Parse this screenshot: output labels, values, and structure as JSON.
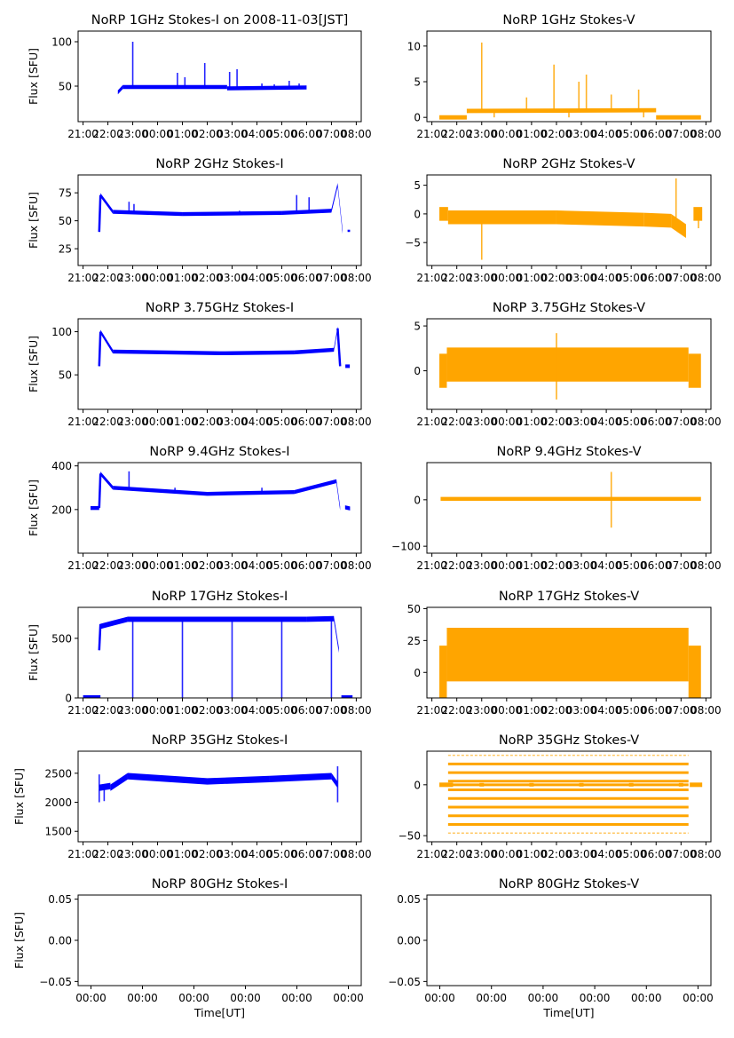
{
  "chart_data": [
    {
      "id": "p1i",
      "type": "scatter",
      "title": "NoRP 1GHz Stokes-I on 2008-11-03[JST]",
      "ylabel": "Flux [SFU]",
      "xlabel": "",
      "color": "#0000ff",
      "ylim": [
        10,
        112
      ],
      "yticks": [
        50,
        100
      ],
      "ytick_labels": [
        "50",
        "100"
      ],
      "xlim": [
        20.8,
        32.2
      ],
      "xticks": [
        21,
        22,
        23,
        24,
        25,
        26,
        27,
        28,
        29,
        30,
        31,
        32
      ],
      "xtick_labels": [
        "21:00",
        "22:00",
        "23:00",
        "00:00",
        "01:00",
        "02:00",
        "03:00",
        "04:00",
        "05:00",
        "06:00",
        "07:00",
        "08:00"
      ],
      "segments": [
        [
          22.4,
          43,
          22.6,
          49
        ],
        [
          22.6,
          49,
          26.8,
          49
        ],
        [
          26.8,
          47.5,
          30,
          48.5
        ]
      ],
      "band": 0.5,
      "spikes": [
        [
          23.0,
          100
        ],
        [
          24.8,
          65
        ],
        [
          25.1,
          60
        ],
        [
          25.9,
          76
        ],
        [
          26.9,
          66
        ],
        [
          27.2,
          69
        ],
        [
          28.2,
          53
        ],
        [
          28.7,
          52
        ],
        [
          29.3,
          56
        ],
        [
          29.7,
          53
        ]
      ]
    },
    {
      "id": "p1v",
      "type": "scatter",
      "title": "NoRP 1GHz Stokes-V",
      "ylabel": "",
      "xlabel": "",
      "color": "#ffa500",
      "ylim": [
        -0.6,
        12.1
      ],
      "yticks": [
        0,
        5,
        10
      ],
      "ytick_labels": [
        "0",
        "5",
        "10"
      ],
      "xlim": [
        20.8,
        32.2
      ],
      "xticks": [
        21,
        22,
        23,
        24,
        25,
        26,
        27,
        28,
        29,
        30,
        31,
        32
      ],
      "xtick_labels": [
        "21:00",
        "22:00",
        "23:00",
        "00:00",
        "01:00",
        "02:00",
        "03:00",
        "04:00",
        "05:00",
        "06:00",
        "07:00",
        "08:00"
      ],
      "segments": [
        [
          21.3,
          0,
          22.4,
          0
        ],
        [
          22.4,
          0.9,
          30,
          1.0
        ],
        [
          30,
          0,
          31.8,
          0
        ]
      ],
      "band": 0.3,
      "spikes": [
        [
          23.0,
          10.5
        ],
        [
          24.8,
          2.8
        ],
        [
          25.9,
          7.4
        ],
        [
          26.9,
          5
        ],
        [
          27.2,
          6
        ],
        [
          28.2,
          3.2
        ],
        [
          29.3,
          3.9
        ],
        [
          23.5,
          0
        ],
        [
          26.5,
          0
        ],
        [
          29.5,
          0
        ]
      ]
    },
    {
      "id": "p2i",
      "type": "scatter",
      "title": "NoRP 2GHz Stokes-I",
      "ylabel": "Flux [SFU]",
      "xlabel": "",
      "color": "#0000ff",
      "ylim": [
        10,
        91
      ],
      "yticks": [
        25,
        50,
        75
      ],
      "ytick_labels": [
        "25",
        "50",
        "75"
      ],
      "xlim": [
        20.8,
        32.2
      ],
      "xticks": [
        21,
        22,
        23,
        24,
        25,
        26,
        27,
        28,
        29,
        30,
        31,
        32
      ],
      "xtick_labels": [
        "21:00",
        "22:00",
        "23:00",
        "00:00",
        "01:00",
        "02:00",
        "03:00",
        "04:00",
        "05:00",
        "06:00",
        "07:00",
        "08:00"
      ],
      "segments": [
        [
          21.65,
          40,
          21.7,
          73
        ],
        [
          21.7,
          73,
          22.2,
          58
        ],
        [
          22.2,
          58,
          25,
          56
        ],
        [
          25,
          56,
          29,
          57
        ],
        [
          29,
          57,
          31,
          59
        ],
        [
          31,
          59,
          31.25,
          82
        ],
        [
          31.25,
          82,
          31.45,
          40
        ],
        [
          31.65,
          41,
          31.75,
          41
        ]
      ],
      "band": 1.2,
      "spikes": [
        [
          22.85,
          67
        ],
        [
          23.05,
          65
        ],
        [
          27.3,
          59
        ],
        [
          29.6,
          73
        ],
        [
          30.1,
          71
        ]
      ]
    },
    {
      "id": "p2v",
      "type": "scatter",
      "title": "NoRP 2GHz Stokes-V",
      "ylabel": "",
      "xlabel": "",
      "color": "#ffa500",
      "ylim": [
        -9,
        6.8
      ],
      "yticks": [
        -5,
        0,
        5
      ],
      "ytick_labels": [
        "−5",
        "0",
        "5"
      ],
      "xlim": [
        20.8,
        32.2
      ],
      "xticks": [
        21,
        22,
        23,
        24,
        25,
        26,
        27,
        28,
        29,
        30,
        31,
        32
      ],
      "xtick_labels": [
        "21:00",
        "22:00",
        "23:00",
        "00:00",
        "01:00",
        "02:00",
        "03:00",
        "04:00",
        "05:00",
        "06:00",
        "07:00",
        "08:00"
      ],
      "segments": [
        [
          21.3,
          0,
          21.65,
          0
        ],
        [
          21.65,
          -0.6,
          26,
          -0.6
        ],
        [
          26,
          -0.6,
          29.5,
          -1
        ],
        [
          29.5,
          -1,
          30.6,
          -1.2
        ],
        [
          30.6,
          -1.2,
          31.2,
          -3
        ],
        [
          31.5,
          0,
          31.85,
          0
        ]
      ],
      "band": 1.2,
      "spikes": [
        [
          23.0,
          -8
        ],
        [
          31.7,
          -2.5
        ],
        [
          30.8,
          6.2
        ]
      ]
    },
    {
      "id": "p3i",
      "type": "scatter",
      "title": "NoRP 3.75GHz Stokes-I",
      "ylabel": "Flux [SFU]",
      "xlabel": "",
      "color": "#0000ff",
      "ylim": [
        10,
        115
      ],
      "yticks": [
        50,
        100
      ],
      "ytick_labels": [
        "50",
        "100"
      ],
      "xlim": [
        20.8,
        32.2
      ],
      "xticks": [
        21,
        22,
        23,
        24,
        25,
        26,
        27,
        28,
        29,
        30,
        31,
        32
      ],
      "xtick_labels": [
        "21:00",
        "22:00",
        "23:00",
        "00:00",
        "01:00",
        "02:00",
        "03:00",
        "04:00",
        "05:00",
        "06:00",
        "07:00",
        "08:00"
      ],
      "segments": [
        [
          21.65,
          60,
          21.7,
          100
        ],
        [
          21.7,
          100,
          22.2,
          77
        ],
        [
          22.2,
          77,
          26.5,
          75
        ],
        [
          26.5,
          75,
          29.5,
          76
        ],
        [
          29.5,
          76,
          31.1,
          79
        ],
        [
          31.1,
          79,
          31.25,
          104
        ],
        [
          31.25,
          104,
          31.35,
          60
        ]
      ],
      "band": 1.5,
      "spikes": [
        [
          31.65,
          60
        ]
      ]
    },
    {
      "id": "p3v",
      "type": "scatter",
      "title": "NoRP 3.75GHz Stokes-V",
      "ylabel": "",
      "xlabel": "",
      "color": "#ffa500",
      "ylim": [
        -4.3,
        5.8
      ],
      "yticks": [
        0,
        5
      ],
      "ytick_labels": [
        "0",
        "5"
      ],
      "xlim": [
        20.8,
        32.2
      ],
      "xticks": [
        21,
        22,
        23,
        24,
        25,
        26,
        27,
        28,
        29,
        30,
        31,
        32
      ],
      "xtick_labels": [
        "21:00",
        "22:00",
        "23:00",
        "00:00",
        "01:00",
        "02:00",
        "03:00",
        "04:00",
        "05:00",
        "06:00",
        "07:00",
        "08:00"
      ],
      "segments": [
        [
          21.3,
          0,
          21.6,
          0
        ],
        [
          21.6,
          0.7,
          31.3,
          0.7
        ],
        [
          31.3,
          0,
          31.8,
          0
        ]
      ],
      "band": 1.9,
      "spikes": [
        [
          26.0,
          4.2
        ],
        [
          26.0,
          -3.2
        ]
      ]
    },
    {
      "id": "p4i",
      "type": "scatter",
      "title": "NoRP 9.4GHz Stokes-I",
      "ylabel": "Flux [SFU]",
      "xlabel": "",
      "color": "#0000ff",
      "ylim": [
        0,
        415
      ],
      "yticks": [
        200,
        400
      ],
      "ytick_labels": [
        "200",
        "400"
      ],
      "xlim": [
        20.8,
        32.2
      ],
      "xticks": [
        21,
        22,
        23,
        24,
        25,
        26,
        27,
        28,
        29,
        30,
        31,
        32
      ],
      "xtick_labels": [
        "21:00",
        "22:00",
        "23:00",
        "00:00",
        "01:00",
        "02:00",
        "03:00",
        "04:00",
        "05:00",
        "06:00",
        "07:00",
        "08:00"
      ],
      "segments": [
        [
          21.3,
          207,
          21.65,
          207
        ],
        [
          21.65,
          207,
          21.7,
          365
        ],
        [
          21.7,
          365,
          22.2,
          300
        ],
        [
          22.2,
          300,
          26,
          272
        ],
        [
          26,
          272,
          29.5,
          280
        ],
        [
          29.5,
          280,
          31.2,
          330
        ],
        [
          31.2,
          330,
          31.35,
          205
        ],
        [
          31.55,
          210,
          31.75,
          205
        ]
      ],
      "band": 6,
      "spikes": [
        [
          22.85,
          375
        ],
        [
          24.7,
          300
        ],
        [
          28.2,
          300
        ]
      ]
    },
    {
      "id": "p4v",
      "type": "scatter",
      "title": "NoRP 9.4GHz Stokes-V",
      "ylabel": "",
      "xlabel": "",
      "color": "#ffa500",
      "ylim": [
        -115,
        80
      ],
      "yticks": [
        -100,
        0
      ],
      "ytick_labels": [
        "−100",
        "0"
      ],
      "xlim": [
        20.8,
        32.2
      ],
      "xticks": [
        21,
        22,
        23,
        24,
        25,
        26,
        27,
        28,
        29,
        30,
        31,
        32
      ],
      "xtick_labels": [
        "21:00",
        "22:00",
        "23:00",
        "00:00",
        "01:00",
        "02:00",
        "03:00",
        "04:00",
        "05:00",
        "06:00",
        "07:00",
        "08:00"
      ],
      "segments": [
        [
          21.35,
          2,
          31.8,
          2
        ]
      ],
      "band": 4,
      "spikes": [
        [
          28.2,
          60
        ],
        [
          28.2,
          -60
        ]
      ]
    },
    {
      "id": "p5i",
      "type": "scatter",
      "title": "NoRP 17GHz Stokes-I",
      "ylabel": "Flux [SFU]",
      "xlabel": "",
      "color": "#0000ff",
      "ylim": [
        0,
        760
      ],
      "yticks": [
        0,
        500
      ],
      "ytick_labels": [
        "0",
        "500"
      ],
      "xlim": [
        20.8,
        32.2
      ],
      "xticks": [
        21,
        22,
        23,
        24,
        25,
        26,
        27,
        28,
        29,
        30,
        31,
        32
      ],
      "xtick_labels": [
        "21:00",
        "22:00",
        "23:00",
        "00:00",
        "01:00",
        "02:00",
        "03:00",
        "04:00",
        "05:00",
        "06:00",
        "07:00",
        "08:00"
      ],
      "segments": [
        [
          21.65,
          400,
          21.7,
          620
        ],
        [
          21.7,
          600,
          22.8,
          660
        ],
        [
          22.8,
          660,
          30,
          660
        ],
        [
          30,
          660,
          31.1,
          665
        ],
        [
          31.1,
          665,
          31.3,
          400
        ],
        [
          21.0,
          0,
          21.7,
          0
        ],
        [
          31.4,
          0,
          31.85,
          0
        ]
      ],
      "band": 22,
      "spikes": [
        [
          23.0,
          0
        ],
        [
          25.0,
          0
        ],
        [
          27.0,
          0
        ],
        [
          29.0,
          0
        ],
        [
          31.0,
          0
        ]
      ]
    },
    {
      "id": "p5v",
      "type": "scatter",
      "title": "NoRP 17GHz Stokes-V",
      "ylabel": "",
      "xlabel": "",
      "color": "#ffa500",
      "ylim": [
        -20,
        51
      ],
      "yticks": [
        0,
        25,
        50
      ],
      "ytick_labels": [
        "0",
        "25",
        "50"
      ],
      "xlim": [
        20.8,
        32.2
      ],
      "xticks": [
        21,
        22,
        23,
        24,
        25,
        26,
        27,
        28,
        29,
        30,
        31,
        32
      ],
      "xtick_labels": [
        "21:00",
        "22:00",
        "23:00",
        "00:00",
        "01:00",
        "02:00",
        "03:00",
        "04:00",
        "05:00",
        "06:00",
        "07:00",
        "08:00"
      ],
      "segments": [
        [
          21.3,
          0,
          21.6,
          0
        ],
        [
          21.6,
          14,
          31.3,
          14
        ],
        [
          31.3,
          0,
          31.8,
          0
        ]
      ],
      "band": 21,
      "spikes": []
    },
    {
      "id": "p6i",
      "type": "scatter",
      "title": "NoRP 35GHz Stokes-I",
      "ylabel": "Flux [SFU]",
      "xlabel": "",
      "color": "#0000ff",
      "ylim": [
        1320,
        2880
      ],
      "yticks": [
        1500,
        2000,
        2500
      ],
      "ytick_labels": [
        "1500",
        "2000",
        "2500"
      ],
      "xlim": [
        20.8,
        32.2
      ],
      "xticks": [
        21,
        22,
        23,
        24,
        25,
        26,
        27,
        28,
        29,
        30,
        31,
        32
      ],
      "xtick_labels": [
        "21:00",
        "22:00",
        "23:00",
        "00:00",
        "01:00",
        "02:00",
        "03:00",
        "04:00",
        "05:00",
        "06:00",
        "07:00",
        "08:00"
      ],
      "segments": [
        [
          21.65,
          2250,
          22.1,
          2280
        ],
        [
          22.1,
          2250,
          22.8,
          2450
        ],
        [
          22.8,
          2450,
          26,
          2360
        ],
        [
          26,
          2360,
          28.5,
          2400
        ],
        [
          28.5,
          2400,
          31.0,
          2450
        ],
        [
          31.0,
          2450,
          31.25,
          2300
        ]
      ],
      "band": 55,
      "spikes": [
        [
          21.65,
          2000
        ],
        [
          21.65,
          2480
        ],
        [
          21.85,
          2020
        ],
        [
          31.25,
          2000
        ],
        [
          31.25,
          2620
        ]
      ]
    },
    {
      "id": "p6v",
      "type": "scatter",
      "title": "NoRP 35GHz Stokes-V",
      "ylabel": "",
      "xlabel": "",
      "color": "#ffa500",
      "ylim": [
        -56,
        33
      ],
      "yticks": [
        -50,
        0
      ],
      "ytick_labels": [
        "−50",
        "0"
      ],
      "xlim": [
        20.8,
        32.2
      ],
      "xticks": [
        21,
        22,
        23,
        24,
        25,
        26,
        27,
        28,
        29,
        30,
        31,
        32
      ],
      "xtick_labels": [
        "21:00",
        "22:00",
        "23:00",
        "00:00",
        "01:00",
        "02:00",
        "03:00",
        "04:00",
        "05:00",
        "06:00",
        "07:00",
        "08:00"
      ],
      "levels": [
        29,
        20.5,
        12,
        3.5,
        0,
        -5,
        -13.5,
        -22,
        -30.5,
        -39,
        -47.5
      ],
      "segments": [
        [
          21.3,
          0,
          21.85,
          0
        ],
        [
          31.35,
          0,
          31.85,
          0
        ]
      ],
      "band": 0,
      "spikes": [
        [
          23.0,
          0
        ],
        [
          25.0,
          0
        ],
        [
          27.0,
          0
        ],
        [
          29.0,
          0
        ],
        [
          31.0,
          0
        ]
      ]
    },
    {
      "id": "p7i",
      "type": "scatter",
      "title": "NoRP 80GHz Stokes-I",
      "ylabel": "Flux [SFU]",
      "xlabel": "Time[UT]",
      "color": "#0000ff",
      "ylim": [
        -0.055,
        0.055
      ],
      "yticks": [
        -0.05,
        0,
        0.05
      ],
      "ytick_labels": [
        "−0.05",
        "0.00",
        "0.05"
      ],
      "xlim": [
        -0.25,
        5.25
      ],
      "xticks": [
        0,
        1,
        2,
        3,
        4,
        5
      ],
      "xtick_labels": [
        "00:00",
        "00:00",
        "00:00",
        "00:00",
        "00:00",
        "00:00"
      ],
      "segments": [],
      "band": 0,
      "spikes": []
    },
    {
      "id": "p7v",
      "type": "scatter",
      "title": "NoRP 80GHz Stokes-V",
      "ylabel": "",
      "xlabel": "Time[UT]",
      "color": "#ffa500",
      "ylim": [
        -0.055,
        0.055
      ],
      "yticks": [
        -0.05,
        0,
        0.05
      ],
      "ytick_labels": [
        "−0.05",
        "0.00",
        "0.05"
      ],
      "xlim": [
        -0.25,
        5.25
      ],
      "xticks": [
        0,
        1,
        2,
        3,
        4,
        5
      ],
      "xtick_labels": [
        "00:00",
        "00:00",
        "00:00",
        "00:00",
        "00:00",
        "00:00"
      ],
      "segments": [],
      "band": 0,
      "spikes": []
    }
  ]
}
